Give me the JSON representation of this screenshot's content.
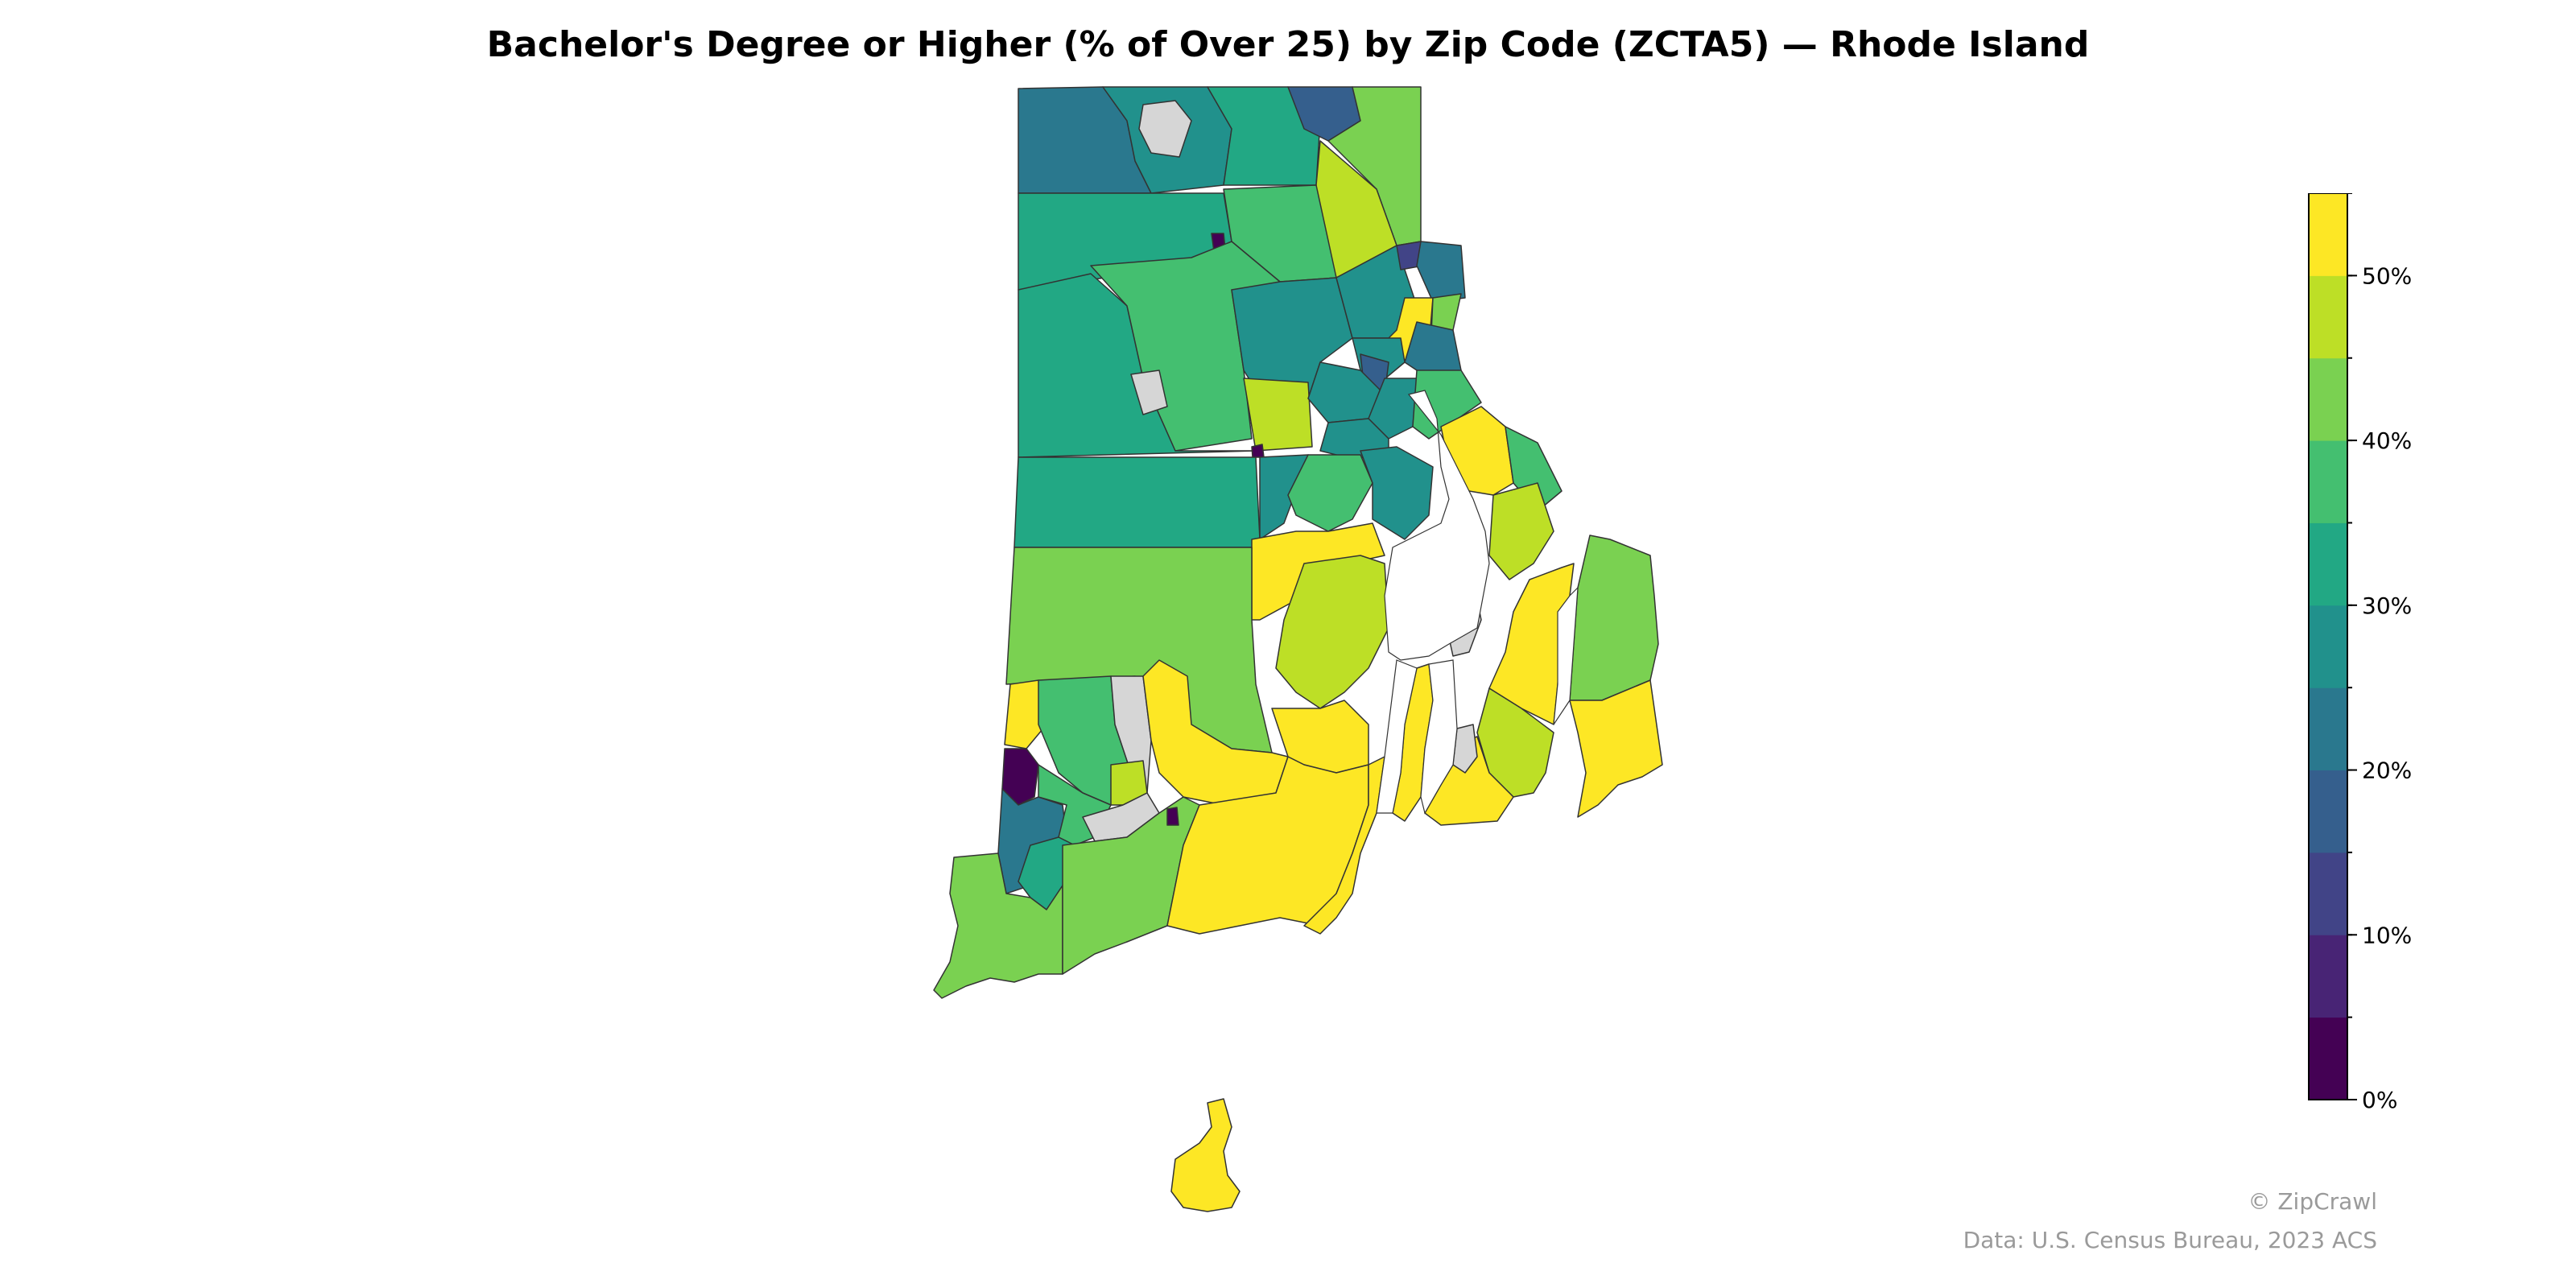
{
  "title": "Bachelor's Degree or Higher (% of Over 25) by Zip Code (ZCTA5) — Rhode Island",
  "legend": {
    "type": "colorbar",
    "scale": "viridis",
    "min": 0,
    "max": 55,
    "ticks": [
      {
        "value": 0,
        "label": "0%"
      },
      {
        "value": 10,
        "label": "10%"
      },
      {
        "value": 20,
        "label": "20%"
      },
      {
        "value": 30,
        "label": "30%"
      },
      {
        "value": 40,
        "label": "40%"
      },
      {
        "value": 50,
        "label": "50%"
      }
    ],
    "bands": [
      "#440154",
      "#482475",
      "#414487",
      "#355f8d",
      "#2a788e",
      "#21918c",
      "#22a884",
      "#44bf70",
      "#7ad151",
      "#bddf26",
      "#fde725"
    ]
  },
  "no_data_color": "#d6d6d6",
  "brand": "© ZipCrawl",
  "source": "Data: U.S. Census Bureau, 2023 ACS"
}
